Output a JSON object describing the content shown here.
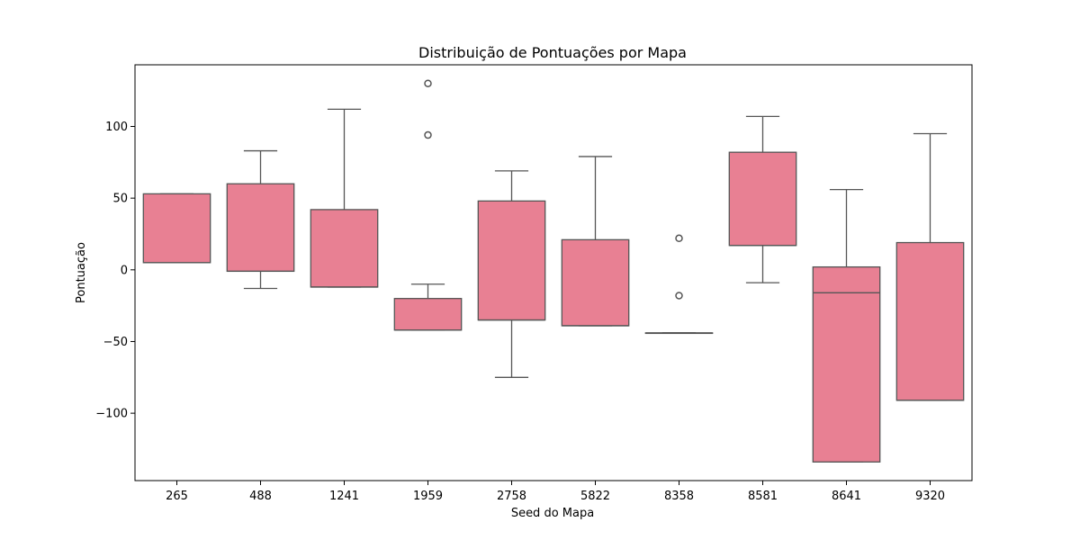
{
  "chart_data": {
    "type": "box",
    "title": "Distribuição de Pontuações por Mapa",
    "xlabel": "Seed do Mapa",
    "ylabel": "Pontuação",
    "ylim": [
      -147,
      143
    ],
    "yticks": [
      -100,
      -50,
      0,
      50,
      100
    ],
    "ytick_labels": [
      "−100",
      "−50",
      "0",
      "50",
      "100"
    ],
    "grid": false,
    "colors": {
      "box_fill": "#e88093",
      "line": "#555555",
      "frame": "#000000"
    },
    "categories": [
      "265",
      "488",
      "1241",
      "1959",
      "2758",
      "5822",
      "8358",
      "8581",
      "8641",
      "9320"
    ],
    "boxes": [
      {
        "category": "265",
        "whisker_low": 5,
        "q1": 5,
        "median": 5,
        "q3": 53,
        "whisker_high": 53,
        "outliers": []
      },
      {
        "category": "488",
        "whisker_low": -13,
        "q1": -1,
        "median": -1,
        "q3": 60,
        "whisker_high": 83,
        "outliers": []
      },
      {
        "category": "1241",
        "whisker_low": -12,
        "q1": -12,
        "median": -12,
        "q3": 42,
        "whisker_high": 112,
        "outliers": []
      },
      {
        "category": "1959",
        "whisker_low": -42,
        "q1": -42,
        "median": -42,
        "q3": -20,
        "whisker_high": -10,
        "outliers": [
          94,
          130
        ]
      },
      {
        "category": "2758",
        "whisker_low": -75,
        "q1": -35,
        "median": -35,
        "q3": 48,
        "whisker_high": 69,
        "outliers": []
      },
      {
        "category": "5822",
        "whisker_low": -39,
        "q1": -39,
        "median": -39,
        "q3": 21,
        "whisker_high": 79,
        "outliers": []
      },
      {
        "category": "8358",
        "whisker_low": -44,
        "q1": -44,
        "median": -44,
        "q3": -44,
        "whisker_high": -44,
        "outliers": [
          22,
          -18
        ]
      },
      {
        "category": "8581",
        "whisker_low": -9,
        "q1": 17,
        "median": 17,
        "q3": 82,
        "whisker_high": 107,
        "outliers": []
      },
      {
        "category": "8641",
        "whisker_low": -134,
        "q1": -134,
        "median": -16,
        "q3": 2,
        "whisker_high": 56,
        "outliers": []
      },
      {
        "category": "9320",
        "whisker_low": -91,
        "q1": -91,
        "median": -91,
        "q3": 19,
        "whisker_high": 95,
        "outliers": []
      }
    ]
  }
}
